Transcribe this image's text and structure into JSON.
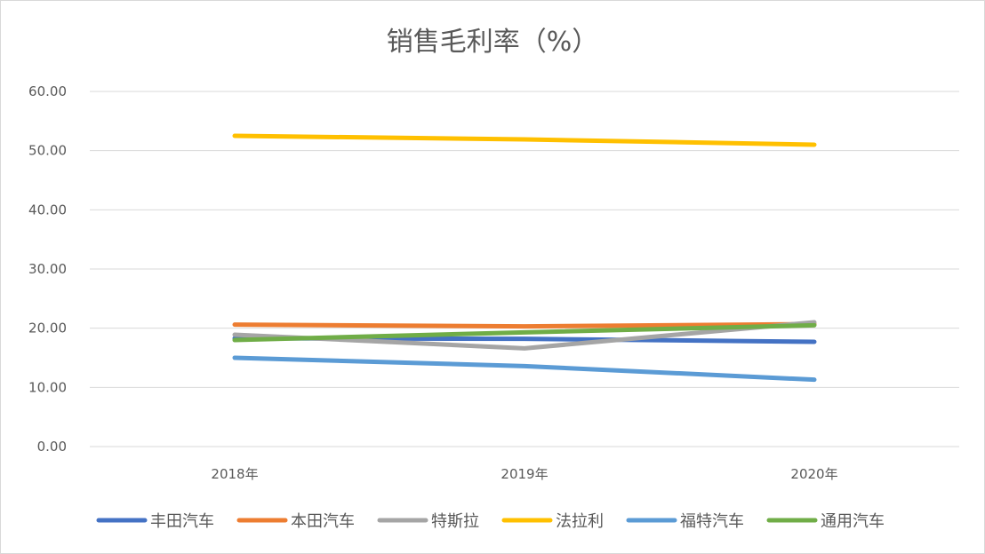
{
  "chart_data": {
    "type": "line",
    "title": "销售毛利率（%）",
    "xlabel": "",
    "ylabel": "",
    "categories": [
      "2018年",
      "2019年",
      "2020年"
    ],
    "ylim": [
      0,
      60
    ],
    "yticks": [
      "0.00",
      "10.00",
      "20.00",
      "30.00",
      "40.00",
      "50.00",
      "60.00"
    ],
    "grid": true,
    "legend_position": "bottom",
    "series": [
      {
        "name": "丰田汽车",
        "color": "#4472C4",
        "values": [
          18.3,
          18.2,
          17.7
        ]
      },
      {
        "name": "本田汽车",
        "color": "#ED7D31",
        "values": [
          20.6,
          20.3,
          20.7
        ]
      },
      {
        "name": "特斯拉",
        "color": "#A5A5A5",
        "values": [
          18.9,
          16.6,
          21.0
        ]
      },
      {
        "name": "法拉利",
        "color": "#FFC000",
        "values": [
          52.5,
          51.9,
          51.0
        ]
      },
      {
        "name": "福特汽车",
        "color": "#5B9BD5",
        "values": [
          15.0,
          13.6,
          11.3
        ]
      },
      {
        "name": "通用汽车",
        "color": "#70AD47",
        "values": [
          18.0,
          19.3,
          20.5
        ]
      }
    ]
  }
}
